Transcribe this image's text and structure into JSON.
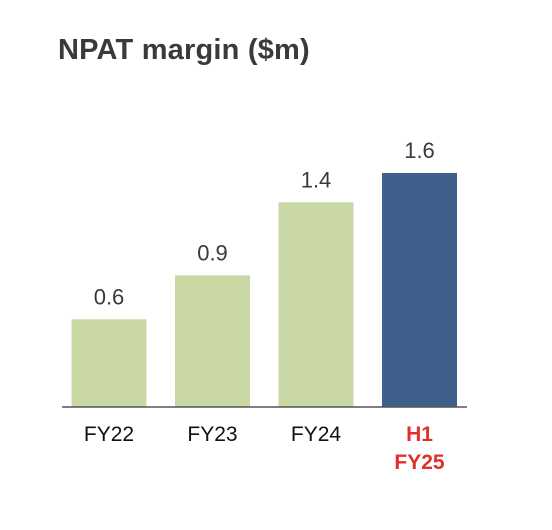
{
  "chart_data": {
    "type": "bar",
    "title": "NPAT margin ($m)",
    "xlabel": "",
    "ylabel": "",
    "categories": [
      "FY22",
      "FY23",
      "FY24",
      "H1 FY25"
    ],
    "category_lines": [
      [
        "FY22"
      ],
      [
        "FY23"
      ],
      [
        "FY24"
      ],
      [
        "H1",
        "FY25"
      ]
    ],
    "values": [
      0.6,
      0.9,
      1.4,
      1.6
    ],
    "value_labels": [
      "0.6",
      "0.9",
      "1.4",
      "1.6"
    ],
    "ylim": [
      0,
      1.6
    ],
    "grid": false,
    "legend": "none",
    "bar_colors": [
      "#c9d8a4",
      "#c9d8a4",
      "#c9d8a4",
      "#3f5f8c"
    ],
    "category_label_colors": [
      "#111111",
      "#111111",
      "#111111",
      "#e0302a"
    ]
  },
  "colors": {
    "title": "#3a3a3a",
    "value_label": "#3a3a3a",
    "axis": "#555555"
  }
}
